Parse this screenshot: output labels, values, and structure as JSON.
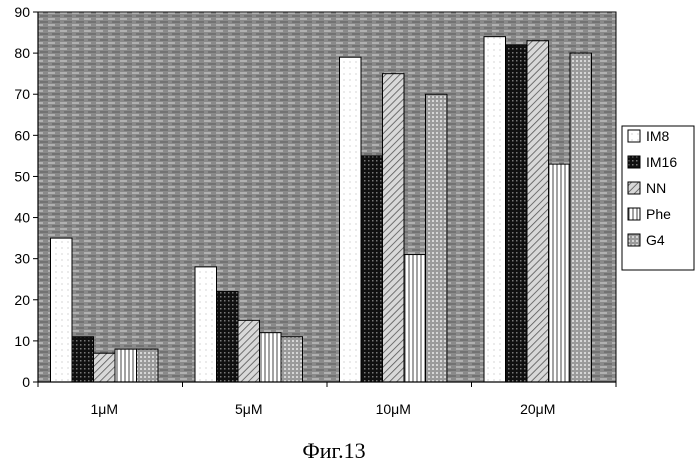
{
  "chart_data": {
    "type": "bar",
    "title": "",
    "xlabel": "",
    "ylabel": "",
    "categories": [
      "1μM",
      "5μM",
      "10μM",
      "20μM"
    ],
    "series": [
      {
        "name": "IM8",
        "values": [
          35,
          28,
          79,
          84
        ]
      },
      {
        "name": "IM16",
        "values": [
          11,
          22,
          55,
          82
        ]
      },
      {
        "name": "NN",
        "values": [
          7,
          15,
          75,
          83
        ]
      },
      {
        "name": "Phe",
        "values": [
          8,
          12,
          31,
          53
        ]
      },
      {
        "name": "G4",
        "values": [
          8,
          11,
          70,
          80
        ]
      }
    ],
    "ylim": [
      0,
      90
    ],
    "yticks": [
      "0",
      "10",
      "20",
      "30",
      "40",
      "50",
      "60",
      "70",
      "80",
      "90"
    ],
    "grid": false,
    "legend": "right",
    "caption": "Фиг.13"
  }
}
